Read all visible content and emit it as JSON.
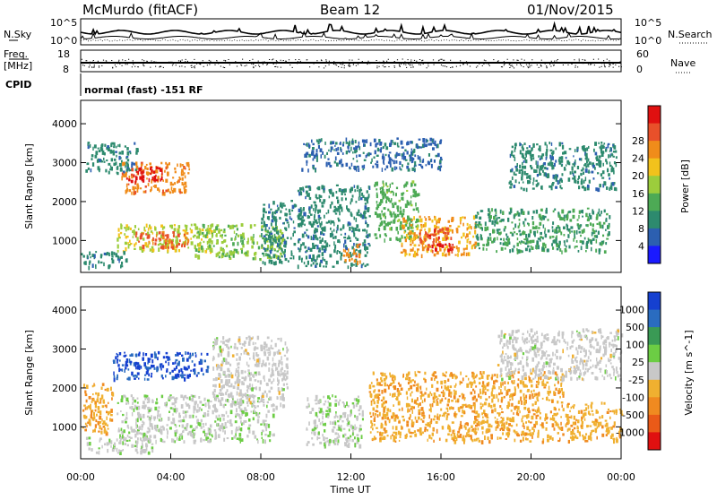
{
  "header": {
    "station": "McMurdo (fitACF)",
    "beam": "Beam 12",
    "date": "01/Nov/2015"
  },
  "noise_panel": {
    "left_label": "N.Sky",
    "right_label": "N.Search",
    "left_ticks": [
      "10^5",
      "10^0"
    ],
    "right_ticks": [
      "10^5",
      "10^0"
    ]
  },
  "freq_panel": {
    "left_label_1": "Freq.",
    "left_label_2": "[MHz]",
    "right_label": "Nave",
    "left_ticks": [
      "18",
      "8"
    ],
    "right_ticks": [
      "60",
      "0"
    ]
  },
  "cpid": {
    "label": "CPID",
    "text": "normal (fast) -151 RF"
  },
  "x_axis": {
    "label": "Time UT",
    "ticks": [
      "00:00",
      "04:00",
      "08:00",
      "12:00",
      "16:00",
      "20:00",
      "00:00"
    ],
    "range_hours": [
      0,
      24
    ]
  },
  "power_panel": {
    "ylabel": "Slant Range [km]",
    "yticks": [
      "1000",
      "2000",
      "3000",
      "4000"
    ],
    "ylim_km": [
      180,
      4600
    ],
    "colorbar_label": "Power [dB]",
    "colorbar_ticks": [
      "4",
      "8",
      "12",
      "16",
      "20",
      "24",
      "28"
    ]
  },
  "velocity_panel": {
    "ylabel": "Slant Range [km]",
    "yticks": [
      "1000",
      "2000",
      "3000",
      "4000"
    ],
    "ylim_km": [
      180,
      4600
    ],
    "colorbar_label": "Velocity [m s^-1]",
    "colorbar_ticks": [
      "1000",
      "500",
      "100",
      "25",
      "-25",
      "-100",
      "-500",
      "-1000"
    ]
  },
  "colors": {
    "power_scale": [
      "#1a1aff",
      "#2c5fb0",
      "#2d8a6e",
      "#4daa55",
      "#9ccd3c",
      "#f2c21c",
      "#f08c1a",
      "#e8502a",
      "#e01010"
    ],
    "velocity_scale": [
      "#1540d0",
      "#2a6cc0",
      "#3a9a55",
      "#6ccd44",
      "#c8c8c8",
      "#f0b030",
      "#f08a20",
      "#ea5a18",
      "#e01010"
    ]
  },
  "chart_data": [
    {
      "type": "heatmap",
      "title": "Power [dB]",
      "xlabel": "Time UT",
      "ylabel": "Slant Range [km]",
      "xlim_hours": [
        0,
        24
      ],
      "ylim_km": [
        180,
        4600
      ],
      "zlim": [
        0,
        30
      ],
      "regions": [
        {
          "t": [
            0.2,
            2.5
          ],
          "r": [
            2700,
            3500
          ],
          "value": 8
        },
        {
          "t": [
            1.8,
            4.8
          ],
          "r": [
            2200,
            3000
          ],
          "value": 22
        },
        {
          "t": [
            2.0,
            3.6
          ],
          "r": [
            2500,
            2900
          ],
          "value": 28
        },
        {
          "t": [
            1.6,
            5.8
          ],
          "r": [
            700,
            1400
          ],
          "value": 16
        },
        {
          "t": [
            2.4,
            4.8
          ],
          "r": [
            800,
            1200
          ],
          "value": 24
        },
        {
          "t": [
            5.0,
            9.0
          ],
          "r": [
            500,
            1400
          ],
          "value": 14
        },
        {
          "t": [
            8.0,
            9.5
          ],
          "r": [
            400,
            2000
          ],
          "value": 8
        },
        {
          "t": [
            0.0,
            2.0
          ],
          "r": [
            300,
            700
          ],
          "value": 8
        },
        {
          "t": [
            9.6,
            12.8
          ],
          "r": [
            300,
            2400
          ],
          "value": 8
        },
        {
          "t": [
            11.6,
            12.4
          ],
          "r": [
            400,
            900
          ],
          "value": 22
        },
        {
          "t": [
            13.0,
            15.0
          ],
          "r": [
            1000,
            2500
          ],
          "value": 12
        },
        {
          "t": [
            14.2,
            17.5
          ],
          "r": [
            600,
            1600
          ],
          "value": 20
        },
        {
          "t": [
            15.0,
            16.5
          ],
          "r": [
            700,
            1300
          ],
          "value": 26
        },
        {
          "t": [
            17.5,
            23.5
          ],
          "r": [
            700,
            1800
          ],
          "value": 10
        },
        {
          "t": [
            19.0,
            23.8
          ],
          "r": [
            2300,
            3500
          ],
          "value": 8
        },
        {
          "t": [
            9.8,
            16.0
          ],
          "r": [
            2800,
            3600
          ],
          "value": 6
        }
      ]
    },
    {
      "type": "heatmap",
      "title": "Velocity [m s^-1]",
      "xlabel": "Time UT",
      "ylabel": "Slant Range [km]",
      "xlim_hours": [
        0,
        24
      ],
      "ylim_km": [
        180,
        4600
      ],
      "zlim": [
        -1000,
        1000
      ],
      "regions": [
        {
          "t": [
            0.0,
            1.4
          ],
          "r": [
            800,
            2100
          ],
          "value": -300
        },
        {
          "t": [
            1.4,
            5.6
          ],
          "r": [
            2200,
            2900
          ],
          "value": 800
        },
        {
          "t": [
            1.6,
            8.6
          ],
          "r": [
            600,
            1800
          ],
          "value": 60
        },
        {
          "t": [
            0.2,
            3.2
          ],
          "r": [
            300,
            700
          ],
          "value": 40
        },
        {
          "t": [
            5.8,
            9.2
          ],
          "r": [
            1500,
            3300
          ],
          "value": 0
        },
        {
          "t": [
            10.0,
            12.5
          ],
          "r": [
            500,
            1800
          ],
          "value": 60
        },
        {
          "t": [
            12.8,
            21.4
          ],
          "r": [
            600,
            2400
          ],
          "value": -300
        },
        {
          "t": [
            21.5,
            24.0
          ],
          "r": [
            600,
            1600
          ],
          "value": -250
        },
        {
          "t": [
            18.5,
            24.0
          ],
          "r": [
            2200,
            3500
          ],
          "value": 0
        }
      ]
    }
  ]
}
